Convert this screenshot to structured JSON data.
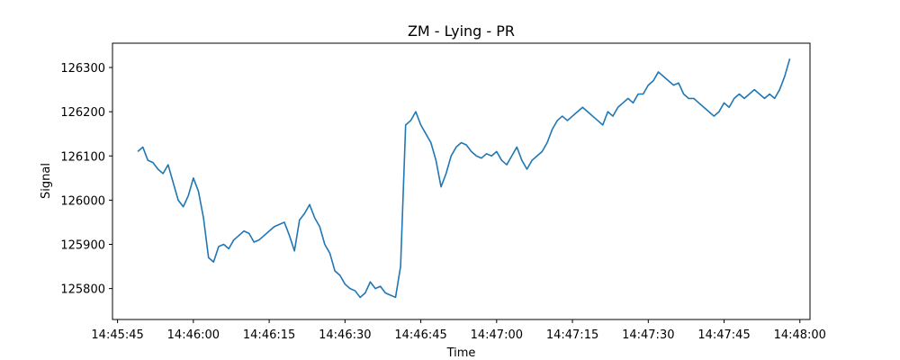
{
  "chart_data": {
    "type": "line",
    "title": "ZM - Lying - PR",
    "xlabel": "Time",
    "ylabel": "Signal",
    "xlim": [
      "14:45:44",
      "14:48:02"
    ],
    "ylim": [
      125730,
      126355
    ],
    "x_ticks": [
      "14:45:45",
      "14:46:00",
      "14:46:15",
      "14:46:30",
      "14:46:45",
      "14:47:00",
      "14:47:15",
      "14:47:30",
      "14:47:45",
      "14:48:00"
    ],
    "y_ticks": [
      125800,
      125900,
      126000,
      126100,
      126200,
      126300
    ],
    "grid": false,
    "color": "#1f77b4",
    "series": [
      {
        "x": [
          "14:45:49",
          "14:45:50",
          "14:45:51",
          "14:45:52",
          "14:45:53",
          "14:45:54",
          "14:45:55",
          "14:45:56",
          "14:45:57",
          "14:45:58",
          "14:45:59",
          "14:46:00",
          "14:46:01",
          "14:46:02",
          "14:46:03",
          "14:46:04",
          "14:46:05",
          "14:46:06",
          "14:46:07",
          "14:46:08",
          "14:46:09",
          "14:46:10",
          "14:46:11",
          "14:46:12",
          "14:46:13",
          "14:46:14",
          "14:46:15",
          "14:46:16",
          "14:46:17",
          "14:46:18",
          "14:46:19",
          "14:46:20",
          "14:46:21",
          "14:46:22",
          "14:46:23",
          "14:46:24",
          "14:46:25",
          "14:46:26",
          "14:46:27",
          "14:46:28",
          "14:46:29",
          "14:46:30",
          "14:46:31",
          "14:46:32",
          "14:46:33",
          "14:46:34",
          "14:46:35",
          "14:46:36",
          "14:46:37",
          "14:46:38",
          "14:46:39",
          "14:46:40",
          "14:46:41",
          "14:46:42",
          "14:46:43",
          "14:46:44",
          "14:46:45",
          "14:46:46",
          "14:46:47",
          "14:46:48",
          "14:46:49",
          "14:46:50",
          "14:46:51",
          "14:46:52",
          "14:46:53",
          "14:46:54",
          "14:46:55",
          "14:46:56",
          "14:46:57",
          "14:46:58",
          "14:46:59",
          "14:47:00",
          "14:47:01",
          "14:47:02",
          "14:47:03",
          "14:47:04",
          "14:47:05",
          "14:47:06",
          "14:47:07",
          "14:47:08",
          "14:47:09",
          "14:47:10",
          "14:47:11",
          "14:47:12",
          "14:47:13",
          "14:47:14",
          "14:47:15",
          "14:47:16",
          "14:47:17",
          "14:47:18",
          "14:47:19",
          "14:47:20",
          "14:47:21",
          "14:47:22",
          "14:47:23",
          "14:47:24",
          "14:47:25",
          "14:47:26",
          "14:47:27",
          "14:47:28",
          "14:47:29",
          "14:47:30",
          "14:47:31",
          "14:47:32",
          "14:47:33",
          "14:47:34",
          "14:47:35",
          "14:47:36",
          "14:47:37",
          "14:47:38",
          "14:47:39",
          "14:47:40",
          "14:47:41",
          "14:47:42",
          "14:47:43",
          "14:47:44",
          "14:47:45",
          "14:47:46",
          "14:47:47",
          "14:47:48",
          "14:47:49",
          "14:47:50",
          "14:47:51",
          "14:47:52",
          "14:47:53",
          "14:47:54",
          "14:47:55",
          "14:47:56",
          "14:47:57",
          "14:47:58"
        ],
        "values": [
          126110,
          126120,
          126090,
          126085,
          126070,
          126060,
          126080,
          126040,
          126000,
          125985,
          126010,
          126050,
          126020,
          125960,
          125870,
          125860,
          125895,
          125900,
          125890,
          125910,
          125920,
          125930,
          125925,
          125905,
          125910,
          125920,
          125930,
          125940,
          125945,
          125950,
          125920,
          125885,
          125955,
          125970,
          125990,
          125960,
          125940,
          125900,
          125880,
          125840,
          125830,
          125810,
          125800,
          125795,
          125780,
          125790,
          125815,
          125800,
          125805,
          125790,
          125785,
          125780,
          125850,
          126170,
          126180,
          126200,
          126170,
          126150,
          126130,
          126090,
          126030,
          126060,
          126100,
          126120,
          126130,
          126125,
          126110,
          126100,
          126095,
          126105,
          126100,
          126110,
          126090,
          126080,
          126100,
          126120,
          126090,
          126070,
          126090,
          126100,
          126110,
          126130,
          126160,
          126180,
          126190,
          126180,
          126190,
          126200,
          126210,
          126200,
          126190,
          126180,
          126170,
          126200,
          126190,
          126210,
          126220,
          126230,
          126220,
          126240,
          126240,
          126260,
          126270,
          126290,
          126280,
          126270,
          126260,
          126265,
          126240,
          126230,
          126230,
          126220,
          126210,
          126200,
          126190,
          126200,
          126220,
          126210,
          126230,
          126240,
          126230,
          126240,
          126250,
          126240,
          126230,
          126240,
          126230,
          126250,
          126280,
          126320
        ]
      }
    ]
  }
}
